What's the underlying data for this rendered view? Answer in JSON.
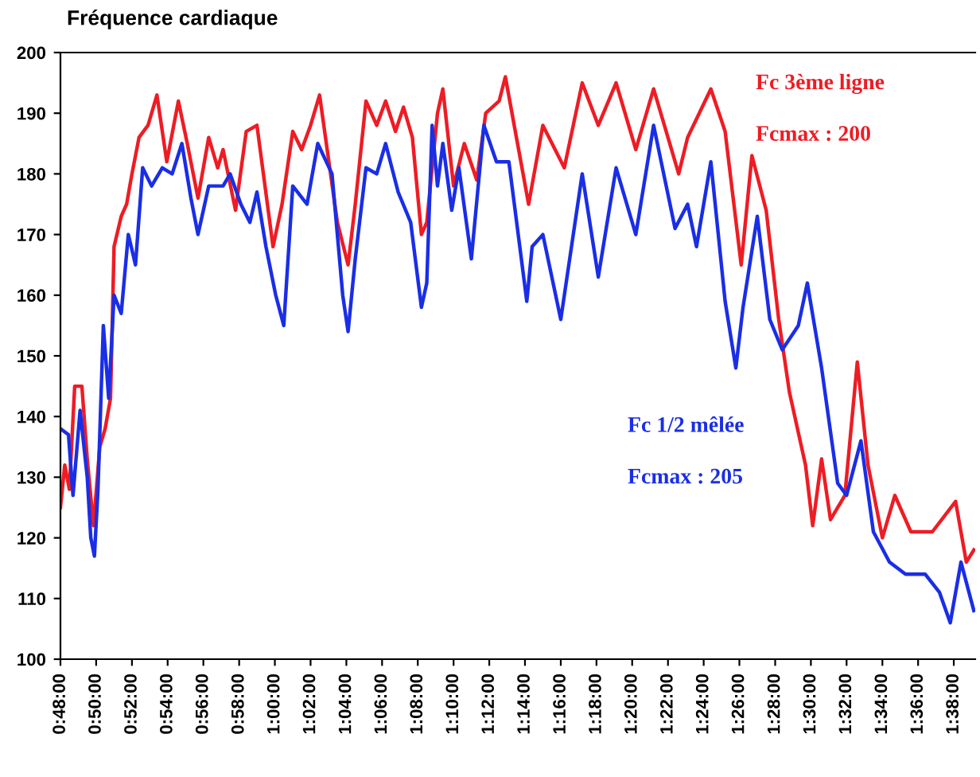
{
  "chart_data": {
    "type": "line",
    "title": "Fréquence cardiaque",
    "series": [
      {
        "name": "Fc 3ème ligne",
        "color": "#ee1c24",
        "x": [
          0.8,
          0.804,
          0.8083,
          0.8133,
          0.82,
          0.825,
          0.8308,
          0.8367,
          0.8417,
          0.8467,
          0.85,
          0.8567,
          0.8617,
          0.8667,
          0.8733,
          0.8817,
          0.89,
          0.8992,
          0.91,
          0.9183,
          0.9283,
          0.9383,
          0.9467,
          0.9517,
          0.9633,
          0.9733,
          0.9833,
          0.9983,
          1.0067,
          1.0167,
          1.025,
          1.0333,
          1.0417,
          1.0583,
          1.0683,
          1.075,
          1.085,
          1.095,
          1.1033,
          1.1125,
          1.12,
          1.1283,
          1.1367,
          1.1417,
          1.1517,
          1.1567,
          1.1667,
          1.1767,
          1.1883,
          1.1967,
          1.2092,
          1.215,
          1.2367,
          1.25,
          1.27,
          1.2867,
          1.3017,
          1.3183,
          1.3367,
          1.3533,
          1.3767,
          1.385,
          1.4067,
          1.42,
          1.435,
          1.445,
          1.4583,
          1.47,
          1.48,
          1.495,
          1.5017,
          1.51,
          1.5183,
          1.5317,
          1.5433,
          1.5533,
          1.5667,
          1.5783,
          1.5933,
          1.6133,
          1.635,
          1.645,
          1.652
        ],
        "values": [
          125,
          132,
          128,
          145,
          145,
          133,
          122,
          135,
          138,
          143,
          168,
          173,
          175,
          180,
          186,
          188,
          193,
          182,
          192,
          185,
          176,
          186,
          181,
          184,
          174,
          187,
          188,
          168,
          175,
          187,
          184,
          188,
          193,
          172,
          165,
          175,
          192,
          188,
          192,
          187,
          191,
          186,
          170,
          172,
          190,
          194,
          178,
          185,
          179,
          190,
          192,
          196,
          175,
          188,
          181,
          195,
          188,
          195,
          184,
          194,
          180,
          186,
          194,
          187,
          165,
          183,
          174,
          156,
          144,
          132,
          122,
          133,
          123,
          127,
          149,
          132,
          120,
          127,
          121,
          121,
          126,
          116,
          118
        ]
      },
      {
        "name": "Fc 1/2 mêlée",
        "color": "#1a2ee6",
        "x": [
          0.8,
          0.8075,
          0.8117,
          0.8183,
          0.825,
          0.8283,
          0.8317,
          0.835,
          0.84,
          0.845,
          0.85,
          0.8567,
          0.8633,
          0.87,
          0.8767,
          0.885,
          0.895,
          0.9042,
          0.9133,
          0.9217,
          0.9283,
          0.9383,
          0.9517,
          0.9583,
          0.9683,
          0.9767,
          0.9833,
          0.9917,
          1.0008,
          1.0083,
          1.0167,
          1.03,
          1.04,
          1.0533,
          1.0633,
          1.0683,
          1.075,
          1.085,
          1.095,
          1.1033,
          1.115,
          1.1267,
          1.1367,
          1.1417,
          1.1467,
          1.1517,
          1.1567,
          1.165,
          1.1717,
          1.1833,
          1.195,
          1.2067,
          1.2183,
          1.235,
          1.24,
          1.25,
          1.2667,
          1.2867,
          1.3017,
          1.3183,
          1.3367,
          1.3533,
          1.3733,
          1.385,
          1.3933,
          1.4067,
          1.42,
          1.43,
          1.4367,
          1.45,
          1.4617,
          1.4733,
          1.4883,
          1.4967,
          1.51,
          1.525,
          1.5333,
          1.5467,
          1.5583,
          1.5733,
          1.5883,
          1.6067,
          1.62,
          1.63,
          1.64,
          1.652
        ],
        "values": [
          138,
          137,
          127,
          141,
          130,
          120,
          117,
          128,
          155,
          143,
          160,
          157,
          170,
          165,
          181,
          178,
          181,
          180,
          185,
          176,
          170,
          178,
          178,
          180,
          175,
          172,
          177,
          168,
          160,
          155,
          178,
          175,
          185,
          180,
          160,
          154,
          166,
          181,
          180,
          185,
          177,
          172,
          158,
          162,
          188,
          178,
          185,
          174,
          181,
          166,
          188,
          182,
          182,
          159,
          168,
          170,
          156,
          180,
          163,
          181,
          170,
          188,
          171,
          175,
          168,
          182,
          159,
          148,
          158,
          173,
          156,
          151,
          155,
          162,
          148,
          129,
          127,
          136,
          121,
          116,
          114,
          114,
          111,
          106,
          116,
          108
        ]
      }
    ],
    "annotations": [
      "Fcmax : 200",
      "Fcmax : 205"
    ],
    "xlim": [
      0.8,
      1.6533
    ],
    "xticks": [
      {
        "value": 0.8,
        "label": "0:48:00"
      },
      {
        "value": 0.8333,
        "label": "0:50:00"
      },
      {
        "value": 0.8667,
        "label": "0:52:00"
      },
      {
        "value": 0.9,
        "label": "0:54:00"
      },
      {
        "value": 0.9333,
        "label": "0:56:00"
      },
      {
        "value": 0.9667,
        "label": "0:58:00"
      },
      {
        "value": 1.0,
        "label": "1:00:00"
      },
      {
        "value": 1.0333,
        "label": "1:02:00"
      },
      {
        "value": 1.0667,
        "label": "1:04:00"
      },
      {
        "value": 1.1,
        "label": "1:06:00"
      },
      {
        "value": 1.1333,
        "label": "1:08:00"
      },
      {
        "value": 1.1667,
        "label": "1:10:00"
      },
      {
        "value": 1.2,
        "label": "1:12:00"
      },
      {
        "value": 1.2333,
        "label": "1:14:00"
      },
      {
        "value": 1.2667,
        "label": "1:16:00"
      },
      {
        "value": 1.3,
        "label": "1:18:00"
      },
      {
        "value": 1.3333,
        "label": "1:20:00"
      },
      {
        "value": 1.3667,
        "label": "1:22:00"
      },
      {
        "value": 1.4,
        "label": "1:24:00"
      },
      {
        "value": 1.4333,
        "label": "1:26:00"
      },
      {
        "value": 1.4667,
        "label": "1:28:00"
      },
      {
        "value": 1.5,
        "label": "1:30:00"
      },
      {
        "value": 1.5333,
        "label": "1:32:00"
      },
      {
        "value": 1.5667,
        "label": "1:34:00"
      },
      {
        "value": 1.6,
        "label": "1:36:00"
      },
      {
        "value": 1.6333,
        "label": "1:38:00"
      }
    ],
    "ylim": [
      100,
      200
    ],
    "yticks": [
      100,
      110,
      120,
      130,
      140,
      150,
      160,
      170,
      180,
      190,
      200
    ],
    "grid": false,
    "legend": false,
    "marker": "none",
    "line_style": "solid"
  }
}
